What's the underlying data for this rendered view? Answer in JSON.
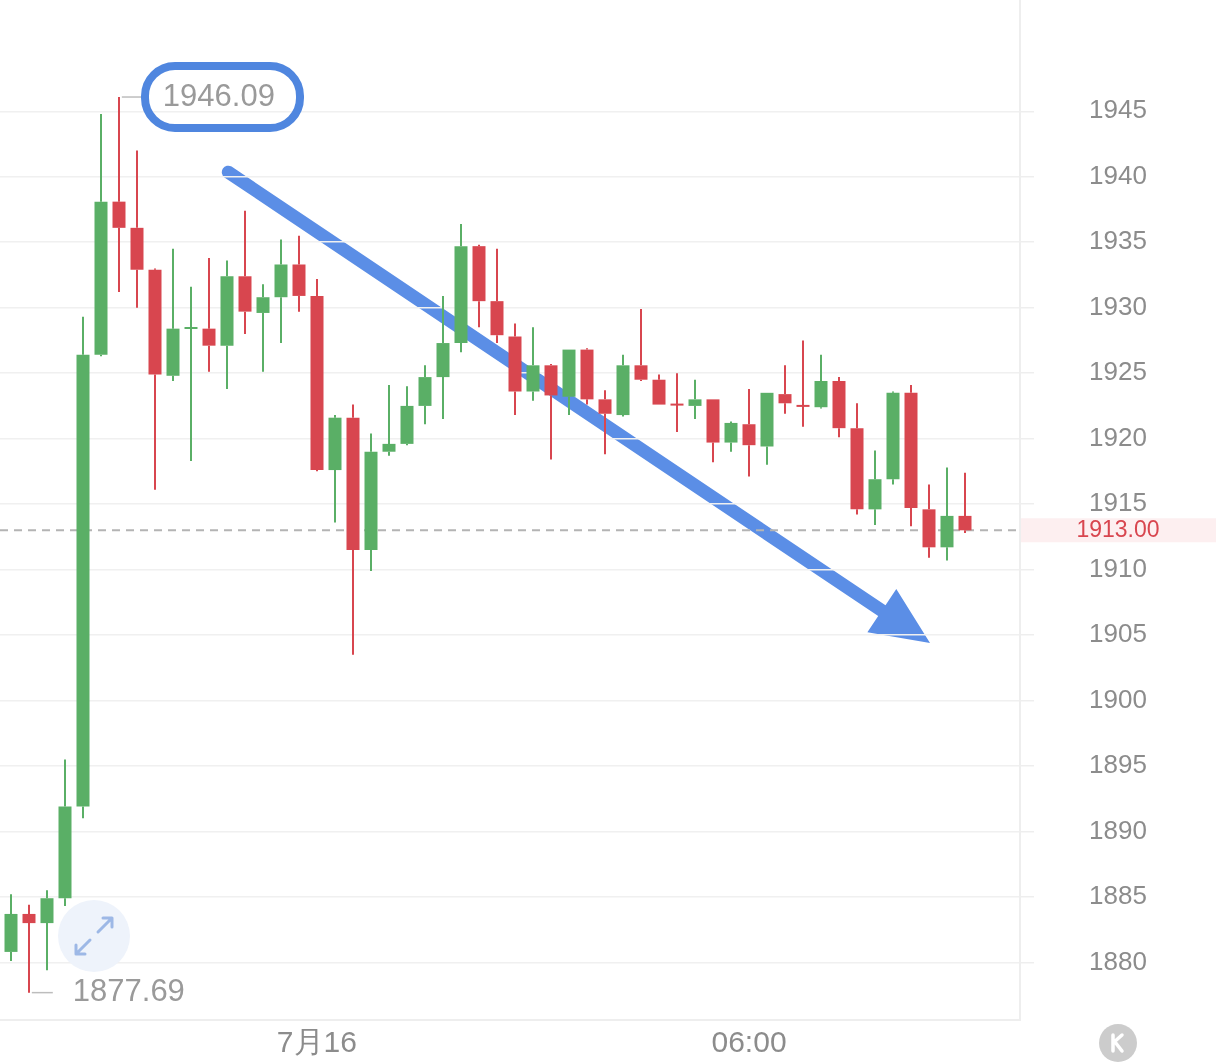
{
  "chart_data": {
    "type": "candlestick",
    "categories": [
      null,
      null,
      null,
      null,
      null,
      null,
      null,
      null,
      null,
      null,
      null,
      null,
      null,
      null,
      null,
      null,
      null,
      "7月16",
      null,
      null,
      null,
      null,
      null,
      null,
      null,
      null,
      null,
      null,
      null,
      null,
      null,
      null,
      null,
      null,
      null,
      null,
      null,
      null,
      null,
      null,
      null,
      "06:00",
      null,
      null,
      null,
      null,
      null,
      null,
      null,
      null,
      null,
      null,
      null,
      null
    ],
    "ohlc": [
      [
        1880.8,
        1885.2,
        1880.1,
        1883.7
      ],
      [
        1883.7,
        1884.4,
        1877.69,
        1883.0
      ],
      [
        1883.0,
        1885.5,
        1879.4,
        1884.9
      ],
      [
        1884.9,
        1895.5,
        1884.3,
        1891.9
      ],
      [
        1891.9,
        1929.3,
        1891.0,
        1926.4
      ],
      [
        1926.4,
        1944.8,
        1926.3,
        1938.1
      ],
      [
        1938.1,
        1946.09,
        1931.2,
        1936.1
      ],
      [
        1936.1,
        1942.0,
        1930.0,
        1932.9
      ],
      [
        1932.9,
        1933.0,
        1916.1,
        1924.9
      ],
      [
        1924.8,
        1934.5,
        1924.4,
        1928.4
      ],
      [
        1928.4,
        1931.6,
        1918.3,
        1928.5
      ],
      [
        1928.4,
        1933.8,
        1925.1,
        1927.1
      ],
      [
        1927.1,
        1933.6,
        1923.8,
        1932.4
      ],
      [
        1932.4,
        1937.4,
        1928.0,
        1929.7
      ],
      [
        1929.6,
        1931.8,
        1925.1,
        1930.8
      ],
      [
        1930.8,
        1935.2,
        1927.3,
        1933.3
      ],
      [
        1933.3,
        1935.5,
        1929.7,
        1930.9
      ],
      [
        1930.9,
        1932.2,
        1917.5,
        1917.6
      ],
      [
        1917.6,
        1921.8,
        1913.6,
        1921.6
      ],
      [
        1921.6,
        1922.6,
        1903.5,
        1911.5
      ],
      [
        1911.5,
        1920.4,
        1909.9,
        1919.0
      ],
      [
        1919.0,
        1924.1,
        1918.7,
        1919.6
      ],
      [
        1919.6,
        1924.0,
        1919.5,
        1922.5
      ],
      [
        1922.5,
        1925.6,
        1921.1,
        1924.7
      ],
      [
        1924.7,
        1930.9,
        1921.5,
        1927.3
      ],
      [
        1927.3,
        1936.4,
        1926.6,
        1934.7
      ],
      [
        1934.7,
        1934.8,
        1928.5,
        1930.5
      ],
      [
        1930.5,
        1934.5,
        1927.3,
        1927.9
      ],
      [
        1927.8,
        1928.8,
        1921.8,
        1923.6
      ],
      [
        1923.6,
        1928.5,
        1922.9,
        1925.6
      ],
      [
        1925.6,
        1925.7,
        1918.4,
        1923.3
      ],
      [
        1923.2,
        1926.8,
        1921.8,
        1926.8
      ],
      [
        1926.8,
        1926.9,
        1922.6,
        1923.0
      ],
      [
        1923.0,
        1923.7,
        1918.8,
        1921.9
      ],
      [
        1921.8,
        1926.4,
        1921.7,
        1925.6
      ],
      [
        1925.6,
        1929.9,
        1924.4,
        1924.5
      ],
      [
        1924.5,
        1924.9,
        1922.6,
        1922.6
      ],
      [
        1922.6,
        1925.0,
        1920.5,
        1922.6
      ],
      [
        1922.5,
        1924.5,
        1921.5,
        1923.0
      ],
      [
        1923.0,
        1923.0,
        1918.2,
        1919.7
      ],
      [
        1919.7,
        1921.3,
        1919.0,
        1921.2
      ],
      [
        1921.1,
        1923.8,
        1917.1,
        1919.5
      ],
      [
        1919.4,
        1923.5,
        1918.0,
        1923.5
      ],
      [
        1923.4,
        1925.6,
        1921.9,
        1922.7
      ],
      [
        1922.5,
        1927.5,
        1920.9,
        1922.5
      ],
      [
        1922.4,
        1926.4,
        1922.3,
        1924.4
      ],
      [
        1924.4,
        1924.7,
        1920.1,
        1920.8
      ],
      [
        1920.8,
        1922.7,
        1914.2,
        1914.6
      ],
      [
        1914.6,
        1919.1,
        1913.4,
        1916.9
      ],
      [
        1916.9,
        1923.6,
        1916.5,
        1923.5
      ],
      [
        1923.5,
        1924.1,
        1913.3,
        1914.7
      ],
      [
        1914.6,
        1916.5,
        1910.9,
        1911.7
      ],
      [
        1911.7,
        1917.8,
        1910.7,
        1914.1
      ],
      [
        1914.1,
        1917.4,
        1912.8,
        1913.0
      ]
    ],
    "colors": [
      "#5aaf66",
      "#d8464f",
      "#5aaf66",
      "#5aaf66",
      "#5aaf66",
      "#5aaf66",
      "#d8464f",
      "#d8464f",
      "#d8464f",
      "#5aaf66",
      "#5aaf66",
      "#d8464f",
      "#5aaf66",
      "#d8464f",
      "#5aaf66",
      "#5aaf66",
      "#d8464f",
      "#d8464f",
      "#5aaf66",
      "#d8464f",
      "#5aaf66",
      "#5aaf66",
      "#5aaf66",
      "#5aaf66",
      "#5aaf66",
      "#5aaf66",
      "#d8464f",
      "#d8464f",
      "#d8464f",
      "#5aaf66",
      "#d8464f",
      "#5aaf66",
      "#d8464f",
      "#d8464f",
      "#5aaf66",
      "#d8464f",
      "#d8464f",
      "#d8464f",
      "#5aaf66",
      "#d8464f",
      "#5aaf66",
      "#d8464f",
      "#5aaf66",
      "#d8464f",
      "#d8464f",
      "#5aaf66",
      "#d8464f",
      "#d8464f",
      "#5aaf66",
      "#5aaf66",
      "#d8464f",
      "#d8464f",
      "#5aaf66",
      "#d8464f"
    ],
    "ylim": [
      1875.6,
      1953.5
    ],
    "yticks": [
      1880,
      1885,
      1890,
      1895,
      1900,
      1905,
      1910,
      1915,
      1920,
      1925,
      1930,
      1935,
      1940,
      1945
    ],
    "grid": "y",
    "ref_lines": [
      {
        "axis": "y",
        "value": 1913,
        "label": "1913.00",
        "color": "#b4b4b4",
        "line_style": "dashed"
      }
    ],
    "annotations": [
      "1946.09",
      "1877.69"
    ]
  }
}
